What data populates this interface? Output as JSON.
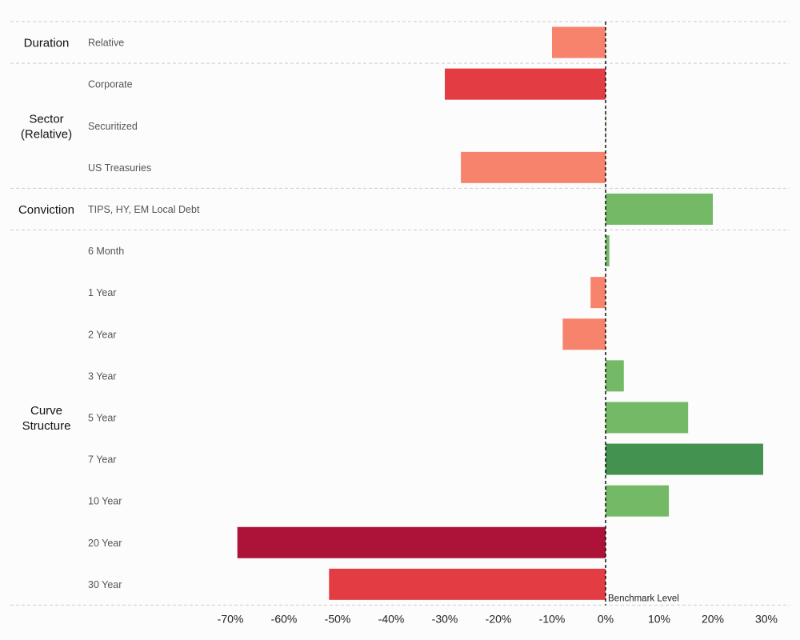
{
  "chart_data": {
    "type": "bar",
    "orientation": "horizontal",
    "title": "",
    "xlabel": "",
    "ylabel": "",
    "xlim": [
      -70,
      30
    ],
    "x_ticks": [
      -70,
      -60,
      -50,
      -40,
      -30,
      -20,
      -10,
      0,
      10,
      20,
      30
    ],
    "x_tick_labels": [
      "-70%",
      "-60%",
      "-50%",
      "-40%",
      "-30%",
      "-20%",
      "-10%",
      "0%",
      "10%",
      "20%",
      "30%"
    ],
    "value_unit": "%",
    "reference_line": {
      "value": 0,
      "label": "Benchmark Level",
      "style": "dashed"
    },
    "grid": false,
    "legend": "none",
    "colors": {
      "strong_negative": "#ad1238",
      "negative": "#e33d43",
      "mild_negative": "#f8836c",
      "mild_positive": "#73b966",
      "strong_positive": "#44924f",
      "divider": "#cccccc",
      "benchmark_line": "#000000"
    },
    "groups": [
      {
        "label": [
          "Duration"
        ],
        "items": [
          {
            "label": "Relative",
            "value": -10,
            "color_key": "mild_negative"
          }
        ]
      },
      {
        "label": [
          "Sector",
          "(Relative)"
        ],
        "items": [
          {
            "label": "Corporate",
            "value": -30,
            "color_key": "negative"
          },
          {
            "label": "Securitized",
            "value": 0,
            "color_key": "mild_positive"
          },
          {
            "label": "US Treasuries",
            "value": -27,
            "color_key": "mild_negative"
          }
        ]
      },
      {
        "label": [
          "Conviction"
        ],
        "items": [
          {
            "label": "TIPS, HY, EM Local Debt",
            "value": 20,
            "color_key": "mild_positive"
          }
        ]
      },
      {
        "label": [
          "Curve",
          "Structure"
        ],
        "items": [
          {
            "label": "6 Month",
            "value": 0.7,
            "color_key": "mild_positive"
          },
          {
            "label": "1 Year",
            "value": -2.8,
            "color_key": "mild_negative"
          },
          {
            "label": "2 Year",
            "value": -8,
            "color_key": "mild_negative"
          },
          {
            "label": "3 Year",
            "value": 3.4,
            "color_key": "mild_positive"
          },
          {
            "label": "5 Year",
            "value": 15.4,
            "color_key": "mild_positive"
          },
          {
            "label": "7 Year",
            "value": 29.4,
            "color_key": "strong_positive"
          },
          {
            "label": "10 Year",
            "value": 11.8,
            "color_key": "mild_positive"
          },
          {
            "label": "20 Year",
            "value": -68.7,
            "color_key": "strong_negative"
          },
          {
            "label": "30 Year",
            "value": -51.6,
            "color_key": "negative"
          }
        ]
      }
    ]
  }
}
